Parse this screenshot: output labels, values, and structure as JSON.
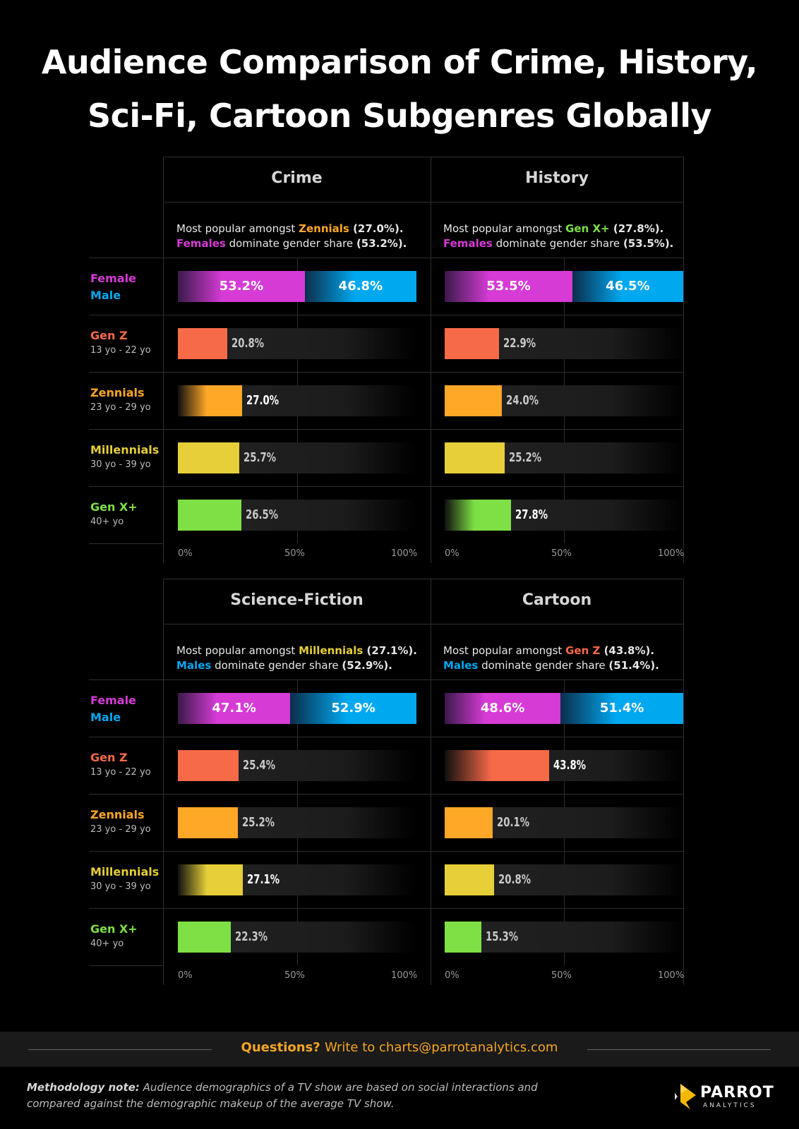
{
  "title_line1": "Audience Comparison of  Crime, History,",
  "title_line2": "Sci-Fi, Cartoon Subgenres Globally",
  "colors": {
    "female": "#d63bd6",
    "male": "#00a8f0",
    "gen_z": "#f76a48",
    "zennials": "#ffa726",
    "millennials": "#e6cf38",
    "gen_x": "#7ee045"
  },
  "rows": [
    {
      "key": "gender",
      "label_female": "Female",
      "label_male": "Male"
    },
    {
      "key": "gen_z",
      "label": "Gen Z",
      "sub": "13 yo - 22 yo"
    },
    {
      "key": "zennials",
      "label": "Zennials",
      "sub": "23 yo - 29 yo"
    },
    {
      "key": "millennials",
      "label": "Millennials",
      "sub": "30 yo - 39 yo"
    },
    {
      "key": "gen_x",
      "label": "Gen X+",
      "sub": "40+ yo"
    }
  ],
  "summary_prefix": "Most popular amongst",
  "summary_suffix": "dominate gender share",
  "chart_data": [
    {
      "type": "bar",
      "title": "Crime",
      "xlim": [
        0,
        100
      ],
      "ticks": [
        "0%",
        "50%",
        "100%"
      ],
      "top_group": "Zennials",
      "top_group_value": "(27.0%).",
      "top_key": "zennials",
      "dominant_gender": "Females",
      "dominant_value": "(53.2%).",
      "dominant_key": "female",
      "female": 53.2,
      "male": 46.8,
      "categories": [
        "Gen Z",
        "Zennials",
        "Millennials",
        "Gen X+"
      ],
      "values": [
        20.8,
        27.0,
        25.7,
        26.5
      ],
      "labels": [
        "20.8%",
        "27.0%",
        "25.7%",
        "26.5%"
      ],
      "female_label": "53.2%",
      "male_label": "46.8%"
    },
    {
      "type": "bar",
      "title": "History",
      "xlim": [
        0,
        100
      ],
      "ticks": [
        "0%",
        "50%",
        "100%"
      ],
      "top_group": "Gen X+",
      "top_group_value": "(27.8%).",
      "top_key": "gen_x",
      "dominant_gender": "Females",
      "dominant_value": "(53.5%).",
      "dominant_key": "female",
      "female": 53.5,
      "male": 46.5,
      "categories": [
        "Gen Z",
        "Zennials",
        "Millennials",
        "Gen X+"
      ],
      "values": [
        22.9,
        24.0,
        25.2,
        27.8
      ],
      "labels": [
        "22.9%",
        "24.0%",
        "25.2%",
        "27.8%"
      ],
      "female_label": "53.5%",
      "male_label": "46.5%"
    },
    {
      "type": "bar",
      "title": "Science-Fiction",
      "xlim": [
        0,
        100
      ],
      "ticks": [
        "0%",
        "50%",
        "100%"
      ],
      "top_group": "Millennials",
      "top_group_value": "(27.1%).",
      "top_key": "millennials",
      "dominant_gender": "Males",
      "dominant_value": "(52.9%).",
      "dominant_key": "male",
      "female": 47.1,
      "male": 52.9,
      "categories": [
        "Gen Z",
        "Zennials",
        "Millennials",
        "Gen X+"
      ],
      "values": [
        25.4,
        25.2,
        27.1,
        22.3
      ],
      "labels": [
        "25.4%",
        "25.2%",
        "27.1%",
        "22.3%"
      ],
      "female_label": "47.1%",
      "male_label": "52.9%"
    },
    {
      "type": "bar",
      "title": "Cartoon",
      "xlim": [
        0,
        100
      ],
      "ticks": [
        "0%",
        "50%",
        "100%"
      ],
      "top_group": "Gen Z",
      "top_group_value": "(43.8%).",
      "top_key": "gen_z",
      "dominant_gender": "Males",
      "dominant_value": "(51.4%).",
      "dominant_key": "male",
      "female": 48.6,
      "male": 51.4,
      "categories": [
        "Gen Z",
        "Zennials",
        "Millennials",
        "Gen X+"
      ],
      "values": [
        43.8,
        20.1,
        20.8,
        15.3
      ],
      "labels": [
        "43.8%",
        "20.1%",
        "20.8%",
        "15.3%"
      ],
      "female_label": "48.6%",
      "male_label": "51.4%"
    }
  ],
  "footer": {
    "question": "Questions?",
    "contact": "Write to charts@parrotanalytics.com",
    "method_bold": "Methodology note:",
    "method_text": "Audience demographics of a TV show are based on social interactions and compared against the demographic makeup of the average TV show.",
    "logo_name": "PARROT",
    "logo_sub": "ANALYTICS"
  }
}
